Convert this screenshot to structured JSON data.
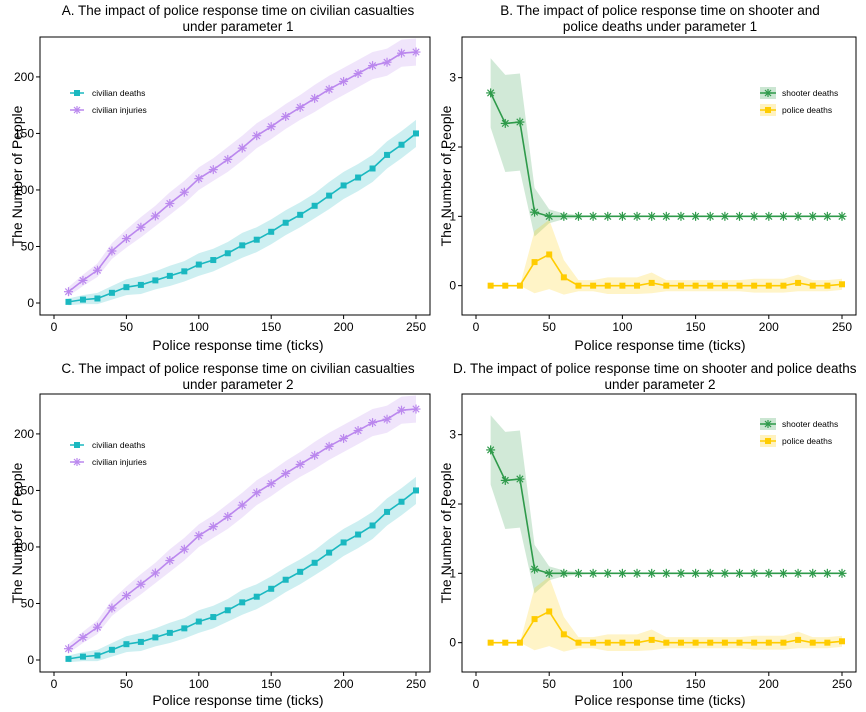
{
  "chart_data": [
    {
      "type": "line",
      "title": "A. The impact of police response time on civilian casualties",
      "subtitle": "under parameter 1",
      "xlabel": "Police response time (ticks)",
      "ylabel": "The Number of  People",
      "xlim": [
        0,
        250
      ],
      "ylim": [
        0,
        230
      ],
      "xticks": [
        0,
        50,
        100,
        150,
        200,
        250
      ],
      "yticks": [
        0,
        50,
        100,
        150,
        200
      ],
      "grid": false,
      "legend_position": "top-left",
      "x": [
        10,
        20,
        30,
        40,
        50,
        60,
        70,
        80,
        90,
        100,
        110,
        120,
        130,
        140,
        150,
        160,
        170,
        180,
        190,
        200,
        210,
        220,
        230,
        240,
        250
      ],
      "series": [
        {
          "name": "civilian deaths",
          "color": "#1ab8c0",
          "marker": "square",
          "values": [
            1,
            3,
            4,
            9,
            14,
            16,
            20,
            24,
            28,
            34,
            38,
            44,
            51,
            56,
            63,
            71,
            78,
            86,
            95,
            104,
            111,
            119,
            131,
            140,
            150
          ],
          "band": [
            3,
            4,
            5,
            6,
            7,
            8,
            8,
            9,
            9,
            10,
            10,
            10,
            11,
            11,
            11,
            11,
            11,
            11,
            12,
            12,
            12,
            12,
            12,
            12,
            12
          ]
        },
        {
          "name": "civilian injuries",
          "color": "#bb88ee",
          "marker": "star",
          "values": [
            10,
            20,
            29,
            46,
            57,
            67,
            77,
            88,
            98,
            110,
            118,
            127,
            137,
            148,
            156,
            165,
            173,
            181,
            189,
            196,
            203,
            210,
            213,
            221,
            222
          ],
          "band": [
            4,
            5,
            6,
            7,
            8,
            9,
            9,
            10,
            10,
            10,
            10,
            11,
            11,
            11,
            11,
            11,
            11,
            12,
            12,
            12,
            12,
            12,
            12,
            12,
            12
          ]
        }
      ]
    },
    {
      "type": "line",
      "title": "B. The impact of police response time on shooter and",
      "subtitle": "police deaths under parameter 1",
      "xlabel": "Police response time (ticks)",
      "ylabel": "The Number of People",
      "xlim": [
        0,
        250
      ],
      "ylim": [
        -0.25,
        3.5
      ],
      "xticks": [
        0,
        50,
        100,
        150,
        200,
        250
      ],
      "yticks": [
        0,
        1,
        2,
        3
      ],
      "grid": false,
      "legend_position": "top-right",
      "x": [
        10,
        20,
        30,
        40,
        50,
        60,
        70,
        80,
        90,
        100,
        110,
        120,
        130,
        140,
        150,
        160,
        170,
        180,
        190,
        200,
        210,
        220,
        230,
        240,
        250
      ],
      "series": [
        {
          "name": "shooter deaths",
          "color": "#2e9a4a",
          "marker": "star",
          "values": [
            2.78,
            2.34,
            2.36,
            1.06,
            1.0,
            1.0,
            1.0,
            1.0,
            1.0,
            1.0,
            1.0,
            1.0,
            1.0,
            1.0,
            1.0,
            1.0,
            1.0,
            1.0,
            1.0,
            1.0,
            1.0,
            1.0,
            1.0,
            1.0,
            1.0
          ],
          "band": [
            0.5,
            0.7,
            0.7,
            0.35,
            0.1,
            0.04,
            0.02,
            0,
            0,
            0,
            0,
            0,
            0,
            0,
            0,
            0,
            0,
            0,
            0,
            0,
            0,
            0,
            0,
            0,
            0
          ]
        },
        {
          "name": "police deaths",
          "color": "#ffcc00",
          "marker": "square",
          "values": [
            0,
            0,
            0,
            0.34,
            0.45,
            0.12,
            0,
            0,
            0,
            0,
            0,
            0.04,
            0,
            0,
            0,
            0,
            0,
            0,
            0,
            0,
            0,
            0.04,
            0,
            0,
            0.02
          ],
          "band": [
            0,
            0,
            0,
            0.45,
            0.5,
            0.25,
            0.08,
            0.08,
            0.12,
            0.12,
            0.12,
            0.15,
            0.08,
            0.08,
            0.08,
            0.08,
            0.08,
            0.08,
            0.1,
            0.1,
            0.1,
            0.12,
            0.08,
            0.08,
            0.08
          ]
        }
      ]
    },
    {
      "type": "line",
      "title": "C. The impact of police response time on civilian casualties",
      "subtitle": "under parameter 2",
      "xlabel": "Police response time (ticks)",
      "ylabel": "The Number of  People",
      "xlim": [
        0,
        250
      ],
      "ylim": [
        0,
        230
      ],
      "xticks": [
        0,
        50,
        100,
        150,
        200,
        250
      ],
      "yticks": [
        0,
        50,
        100,
        150,
        200
      ],
      "grid": false,
      "legend_position": "top-left",
      "x": [
        10,
        20,
        30,
        40,
        50,
        60,
        70,
        80,
        90,
        100,
        110,
        120,
        130,
        140,
        150,
        160,
        170,
        180,
        190,
        200,
        210,
        220,
        230,
        240,
        250
      ],
      "series": [
        {
          "name": "civilian deaths",
          "color": "#1ab8c0",
          "marker": "square",
          "values": [
            1,
            3,
            4,
            9,
            14,
            16,
            20,
            24,
            28,
            34,
            38,
            44,
            51,
            56,
            63,
            71,
            78,
            86,
            95,
            104,
            111,
            119,
            131,
            140,
            150
          ],
          "band": [
            3,
            4,
            5,
            6,
            7,
            8,
            8,
            9,
            9,
            10,
            10,
            10,
            11,
            11,
            11,
            11,
            11,
            11,
            12,
            12,
            12,
            12,
            12,
            12,
            12
          ]
        },
        {
          "name": "civilian injuries",
          "color": "#bb88ee",
          "marker": "star",
          "values": [
            10,
            20,
            29,
            46,
            57,
            67,
            77,
            88,
            98,
            110,
            118,
            127,
            137,
            148,
            156,
            165,
            173,
            181,
            189,
            196,
            203,
            210,
            213,
            221,
            222
          ],
          "band": [
            4,
            5,
            6,
            7,
            8,
            9,
            9,
            10,
            10,
            10,
            10,
            11,
            11,
            11,
            11,
            11,
            11,
            12,
            12,
            12,
            12,
            12,
            12,
            12,
            12
          ]
        }
      ]
    },
    {
      "type": "line",
      "title": "D. The impact of police response time on shooter and police deaths",
      "subtitle": "under parameter 2",
      "xlabel": "Police response time (ticks)",
      "ylabel": "The Number of People",
      "xlim": [
        0,
        250
      ],
      "ylim": [
        -0.25,
        3.5
      ],
      "xticks": [
        0,
        50,
        100,
        150,
        200,
        250
      ],
      "yticks": [
        0,
        1,
        2,
        3
      ],
      "grid": false,
      "legend_position": "top-right",
      "x": [
        10,
        20,
        30,
        40,
        50,
        60,
        70,
        80,
        90,
        100,
        110,
        120,
        130,
        140,
        150,
        160,
        170,
        180,
        190,
        200,
        210,
        220,
        230,
        240,
        250
      ],
      "series": [
        {
          "name": "shooter deaths",
          "color": "#2e9a4a",
          "marker": "star",
          "values": [
            2.78,
            2.34,
            2.36,
            1.06,
            1.0,
            1.0,
            1.0,
            1.0,
            1.0,
            1.0,
            1.0,
            1.0,
            1.0,
            1.0,
            1.0,
            1.0,
            1.0,
            1.0,
            1.0,
            1.0,
            1.0,
            1.0,
            1.0,
            1.0,
            1.0
          ],
          "band": [
            0.5,
            0.7,
            0.7,
            0.35,
            0.1,
            0.04,
            0.02,
            0,
            0,
            0,
            0,
            0,
            0,
            0,
            0,
            0,
            0,
            0,
            0,
            0,
            0,
            0,
            0,
            0,
            0
          ]
        },
        {
          "name": "police deaths",
          "color": "#ffcc00",
          "marker": "square",
          "values": [
            0,
            0,
            0,
            0.34,
            0.45,
            0.12,
            0,
            0,
            0,
            0,
            0,
            0.04,
            0,
            0,
            0,
            0,
            0,
            0,
            0,
            0,
            0,
            0.04,
            0,
            0,
            0.02
          ],
          "band": [
            0,
            0,
            0,
            0.45,
            0.5,
            0.25,
            0.08,
            0.08,
            0.12,
            0.12,
            0.12,
            0.15,
            0.08,
            0.08,
            0.08,
            0.08,
            0.08,
            0.08,
            0.1,
            0.1,
            0.1,
            0.12,
            0.08,
            0.08,
            0.08
          ]
        }
      ]
    }
  ]
}
